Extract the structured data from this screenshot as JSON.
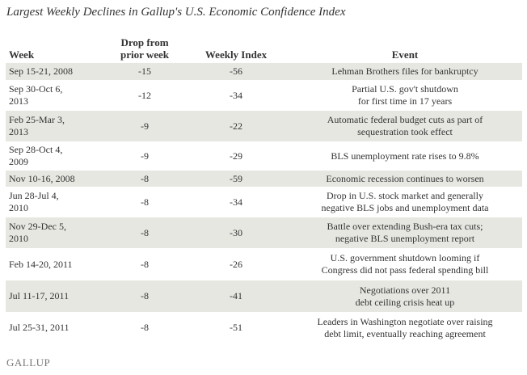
{
  "title": "Largest Weekly Declines in Gallup's U.S. Economic Confidence Index",
  "columns": [
    "Week",
    [
      "Drop from",
      "prior week"
    ],
    "Weekly Index",
    "Event"
  ],
  "rows": [
    {
      "week": [
        "Sep 15-21, 2008"
      ],
      "drop": "-15",
      "index": "-56",
      "event": [
        "Lehman Brothers files for bankruptcy"
      ]
    },
    {
      "week": [
        "Sep 30-Oct 6,",
        "2013"
      ],
      "drop": "-12",
      "index": "-34",
      "event": [
        "Partial U.S. gov't shutdown",
        "for first time in 17 years"
      ]
    },
    {
      "week": [
        "Feb 25-Mar 3,",
        "2013"
      ],
      "drop": "-9",
      "index": "-22",
      "event": [
        "Automatic federal budget cuts as part of",
        "sequestration took effect"
      ]
    },
    {
      "week": [
        "Sep 28-Oct 4,",
        "2009"
      ],
      "drop": "-9",
      "index": "-29",
      "event": [
        "BLS unemployment rate rises to 9.8%"
      ]
    },
    {
      "week": [
        "Nov 10-16, 2008"
      ],
      "drop": "-8",
      "index": "-59",
      "event": [
        "Economic recession continues to worsen"
      ]
    },
    {
      "week": [
        "Jun 28-Jul 4,",
        "2010"
      ],
      "drop": "-8",
      "index": "-34",
      "event": [
        "Drop in U.S. stock market and generally",
        "negative BLS jobs and unemployment data"
      ]
    },
    {
      "week": [
        "Nov 29-Dec 5,",
        "2010"
      ],
      "drop": "-8",
      "index": "-30",
      "event": [
        "Battle over extending Bush-era tax cuts;",
        "negative BLS unemployment report"
      ]
    },
    {
      "week": [
        "Feb 14-20, 2011"
      ],
      "drop": "-8",
      "index": "-26",
      "event": [
        "U.S. government shutdown looming if",
        "Congress did not pass federal spending bill"
      ]
    },
    {
      "week": [
        "Jul 11-17, 2011"
      ],
      "drop": "-8",
      "index": "-41",
      "event": [
        "Negotiations over 2011",
        "debt ceiling crisis heat up"
      ]
    },
    {
      "week": [
        "Jul 25-31, 2011"
      ],
      "drop": "-8",
      "index": "-51",
      "event": [
        "Leaders in Washington negotiate over raising",
        "debt limit, eventually reaching agreement"
      ]
    }
  ],
  "logo": "GALLUP",
  "colors": {
    "stripe": "#e7e7e2",
    "text": "#333333"
  },
  "chart_data": {
    "type": "table",
    "title": "Largest Weekly Declines in Gallup's U.S. Economic Confidence Index",
    "columns": [
      "Week",
      "Drop from prior week",
      "Weekly Index",
      "Event"
    ]
  }
}
